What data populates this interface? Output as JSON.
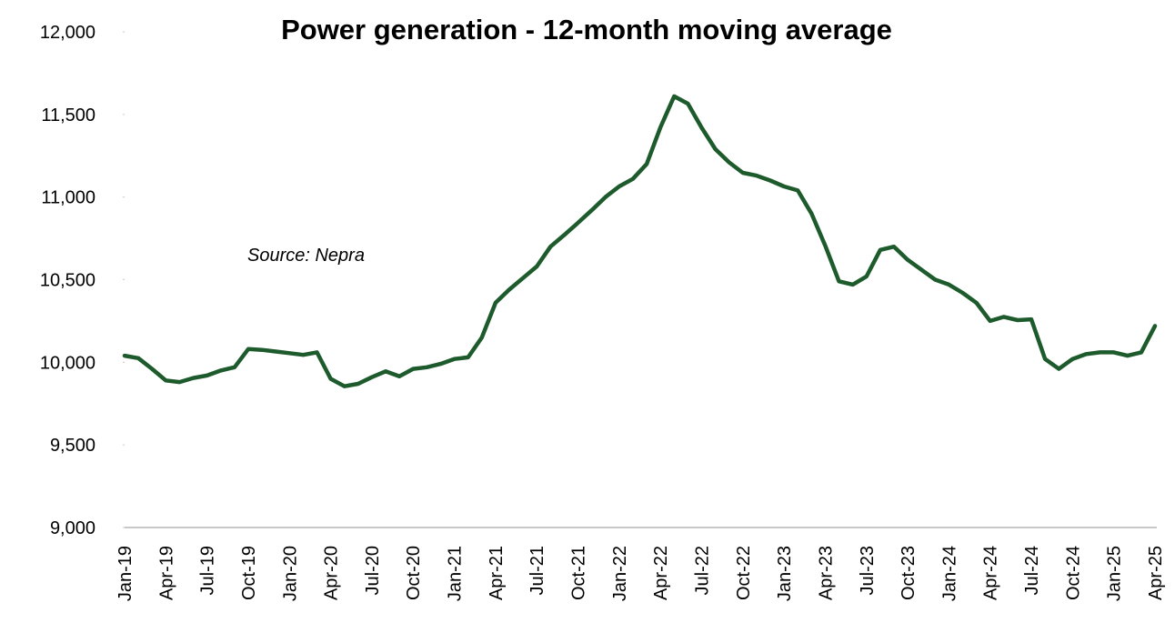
{
  "chart_data": {
    "type": "line",
    "title": "Power generation - 12-month moving average",
    "annotation": "Source: Nepra",
    "categories": [
      "Jan-19",
      null,
      null,
      "Apr-19",
      null,
      null,
      "Jul-19",
      null,
      null,
      "Oct-19",
      null,
      null,
      "Jan-20",
      null,
      null,
      "Apr-20",
      null,
      null,
      "Jul-20",
      null,
      null,
      "Oct-20",
      null,
      null,
      "Jan-21",
      null,
      null,
      "Apr-21",
      null,
      null,
      "Jul-21",
      null,
      null,
      "Oct-21",
      null,
      null,
      "Jan-22",
      null,
      null,
      "Apr-22",
      null,
      null,
      "Jul-22",
      null,
      null,
      "Oct-22",
      null,
      null,
      "Jan-23",
      null,
      null,
      "Apr-23",
      null,
      null,
      "Jul-23",
      null,
      null,
      "Oct-23",
      null,
      null,
      "Jan-24",
      null,
      null,
      "Apr-24",
      null,
      null,
      "Jul-24",
      null,
      null,
      "Oct-24",
      null,
      null,
      "Jan-25",
      null,
      null,
      "Apr-25"
    ],
    "series": [
      {
        "name": "Power generation",
        "color": "#1d5a2c",
        "values": [
          10040,
          10025,
          9960,
          9890,
          9880,
          9905,
          9920,
          9950,
          9970,
          10080,
          10075,
          10065,
          10055,
          10045,
          10060,
          9900,
          9855,
          9870,
          9910,
          9945,
          9915,
          9960,
          9970,
          9990,
          10020,
          10030,
          10150,
          10360,
          10440,
          10510,
          10580,
          10700,
          10770,
          10844,
          10920,
          11000,
          11064,
          11110,
          11200,
          11422,
          11610,
          11565,
          11420,
          11290,
          11210,
          11147,
          11130,
          11100,
          11064,
          11040,
          10900,
          10706,
          10490,
          10470,
          10520,
          10680,
          10700,
          10620,
          10560,
          10500,
          10470,
          10420,
          10360,
          10250,
          10275,
          10255,
          10260,
          10020,
          9960,
          10020,
          10050,
          10060,
          10060,
          10040,
          10060,
          10220
        ]
      }
    ],
    "ylim": [
      9000,
      12000
    ],
    "yticks": [
      {
        "value": 9000,
        "label": "9,000"
      },
      {
        "value": 9500,
        "label": "9,500"
      },
      {
        "value": 10000,
        "label": "10,000"
      },
      {
        "value": 10500,
        "label": "10,500"
      },
      {
        "value": 11000,
        "label": "11,000"
      },
      {
        "value": 11500,
        "label": "11,500"
      },
      {
        "value": 12000,
        "label": "12,000"
      }
    ]
  }
}
